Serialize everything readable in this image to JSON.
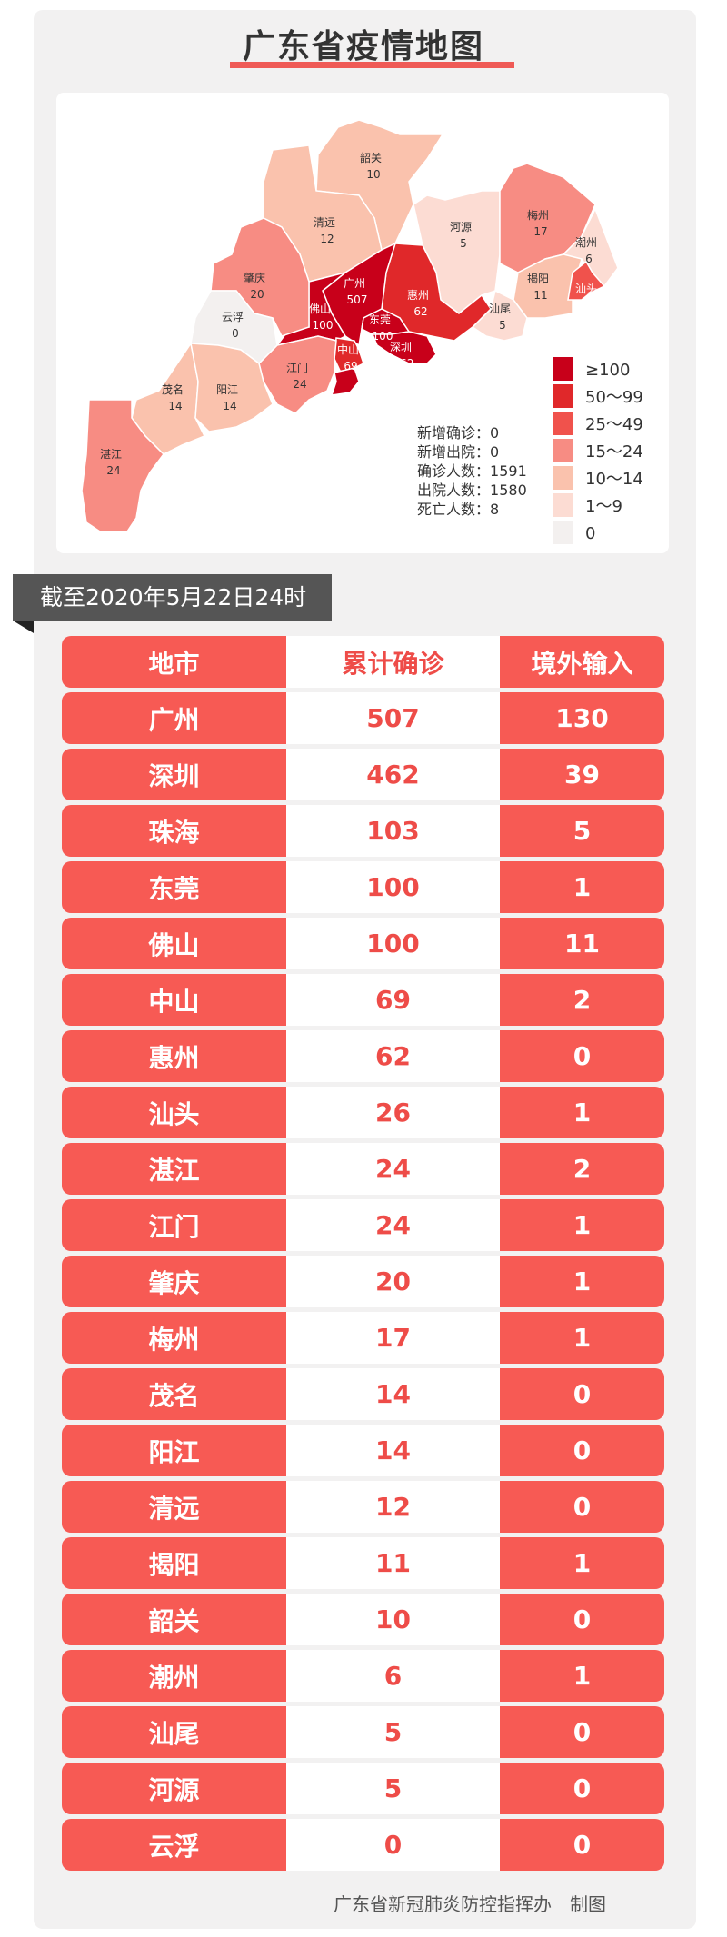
{
  "title": "广东省疫情地图",
  "timestamp": "截至2020年5月22日24时",
  "map": {
    "regions": [
      {
        "name": "韶关",
        "value": 10
      },
      {
        "name": "清远",
        "value": 12
      },
      {
        "name": "河源",
        "value": 5
      },
      {
        "name": "梅州",
        "value": 17
      },
      {
        "name": "潮州",
        "value": 6
      },
      {
        "name": "揭阳",
        "value": 11
      },
      {
        "name": "汕头",
        "value": 26
      },
      {
        "name": "汕尾",
        "value": 5
      },
      {
        "name": "惠州",
        "value": 62
      },
      {
        "name": "广州",
        "value": 507
      },
      {
        "name": "东莞",
        "value": 100
      },
      {
        "name": "佛山",
        "value": 100
      },
      {
        "name": "深圳",
        "value": 462
      },
      {
        "name": "中山",
        "value": 69
      },
      {
        "name": "珠海",
        "value": 103
      },
      {
        "name": "江门",
        "value": 24
      },
      {
        "name": "肇庆",
        "value": 20
      },
      {
        "name": "云浮",
        "value": 0
      },
      {
        "name": "茂名",
        "value": 14
      },
      {
        "name": "阳江",
        "value": 14
      },
      {
        "name": "湛江",
        "value": 24
      }
    ],
    "stats": [
      {
        "label": "新增确诊",
        "value": "0"
      },
      {
        "label": "新增出院",
        "value": "0"
      },
      {
        "label": "确诊人数",
        "value": "1591"
      },
      {
        "label": "出院人数",
        "value": "1580"
      },
      {
        "label": "死亡人数",
        "value": "8"
      }
    ],
    "legend": [
      {
        "label": "≥100",
        "color": "#c8001a"
      },
      {
        "label": "50～99",
        "color": "#e0282a"
      },
      {
        "label": "25～49",
        "color": "#f0524c"
      },
      {
        "label": "15～24",
        "color": "#f78c83"
      },
      {
        "label": "10～14",
        "color": "#fac2ad"
      },
      {
        "label": "1～9",
        "color": "#fcdcd3"
      },
      {
        "label": "0",
        "color": "#f3f0ef"
      }
    ]
  },
  "table": {
    "headers": [
      "地市",
      "累计确诊",
      "境外输入"
    ],
    "rows": [
      [
        "广州",
        "507",
        "130"
      ],
      [
        "深圳",
        "462",
        "39"
      ],
      [
        "珠海",
        "103",
        "5"
      ],
      [
        "东莞",
        "100",
        "1"
      ],
      [
        "佛山",
        "100",
        "11"
      ],
      [
        "中山",
        "69",
        "2"
      ],
      [
        "惠州",
        "62",
        "0"
      ],
      [
        "汕头",
        "26",
        "1"
      ],
      [
        "湛江",
        "24",
        "2"
      ],
      [
        "江门",
        "24",
        "1"
      ],
      [
        "肇庆",
        "20",
        "1"
      ],
      [
        "梅州",
        "17",
        "1"
      ],
      [
        "茂名",
        "14",
        "0"
      ],
      [
        "阳江",
        "14",
        "0"
      ],
      [
        "清远",
        "12",
        "0"
      ],
      [
        "揭阳",
        "11",
        "1"
      ],
      [
        "韶关",
        "10",
        "0"
      ],
      [
        "潮州",
        "6",
        "1"
      ],
      [
        "汕尾",
        "5",
        "0"
      ],
      [
        "河源",
        "5",
        "0"
      ],
      [
        "云浮",
        "0",
        "0"
      ]
    ]
  },
  "footer": "广东省新冠肺炎防控指挥办　制图"
}
